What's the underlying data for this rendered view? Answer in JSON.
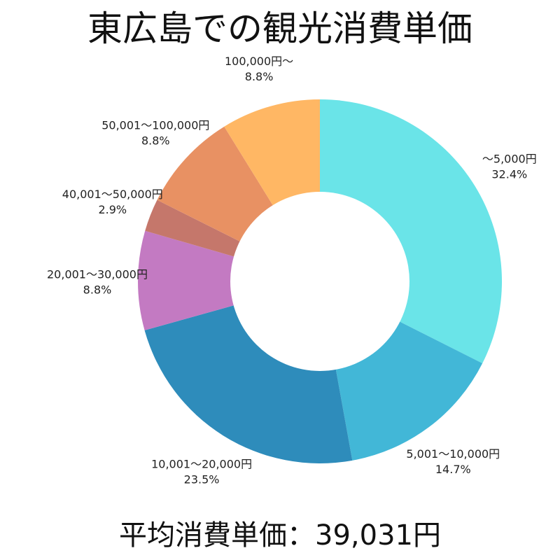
{
  "title": "東広島での観光消費単価",
  "footer": "平均消費単価：39,031円",
  "chart_data": {
    "type": "pie",
    "style": "donut",
    "title": "東広島での観光消費単価",
    "start": "top",
    "direction": "clockwise",
    "slices": [
      {
        "label": "～5,000円",
        "value": 32.4,
        "value_label": "32.4%",
        "color": "#6ae4e8"
      },
      {
        "label": "5,001～10,000円",
        "value": 14.7,
        "value_label": "14.7%",
        "color": "#42b7d7"
      },
      {
        "label": "10,001～20,000円",
        "value": 23.5,
        "value_label": "23.5%",
        "color": "#2e8cbb"
      },
      {
        "label": "20,001～30,000円",
        "value": 8.8,
        "value_label": "8.8%",
        "color": "#c37ac2"
      },
      {
        "label": "40,001～50,000円",
        "value": 2.9,
        "value_label": "2.9%",
        "color": "#c5776b"
      },
      {
        "label": "50,001～100,000円",
        "value": 8.8,
        "value_label": "8.8%",
        "color": "#e89163"
      },
      {
        "label": "100,000円～",
        "value": 8.8,
        "value_label": "8.8%",
        "color": "#ffb764"
      }
    ]
  }
}
